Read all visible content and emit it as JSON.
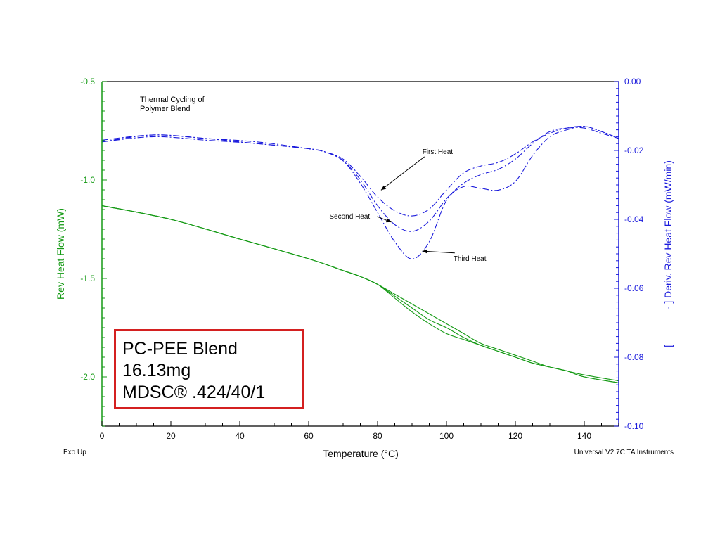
{
  "chart_data": {
    "type": "line",
    "title": "Thermal Cycling of\nPolymer Blend",
    "xlabel": "Temperature (°C)",
    "ylabel_left": "Rev Heat Flow (mW)",
    "ylabel_right": "[ ——— · ] Deriv. Rev Heat Flow (mW/min)",
    "xlim": [
      0,
      150
    ],
    "ylim_left": [
      -2.25,
      -0.5
    ],
    "ylim_right": [
      -0.1,
      0.0
    ],
    "x_ticks": [
      0,
      20,
      40,
      60,
      80,
      100,
      120,
      140
    ],
    "y_ticks_left": [
      -0.5,
      -1.0,
      -1.5,
      -2.0
    ],
    "y_ticks_left_labels": [
      "-0.5",
      "-1.0",
      "-1.5",
      "-2.0"
    ],
    "y_ticks_right": [
      0.0,
      -0.02,
      -0.04,
      -0.06,
      -0.08,
      -0.1
    ],
    "y_ticks_right_labels": [
      "0.00",
      "-0.02",
      "-0.04",
      "-0.06",
      "-0.08",
      "-0.10"
    ],
    "grid": false,
    "colors": {
      "left_axis": "#159a15",
      "right_axis": "#1a1adc",
      "rev_curve": "#159a15",
      "deriv_curve": "#1a1adc"
    },
    "footer_left": "Exo Up",
    "footer_right": "Universal V2.7C TA Instruments",
    "rev_heat_flow_series": [
      {
        "name": "First Heat",
        "axis": "left",
        "x": [
          0,
          20,
          40,
          60,
          70,
          75,
          80,
          85,
          90,
          95,
          100,
          105,
          110,
          115,
          120,
          125,
          130,
          135,
          140,
          150
        ],
        "y": [
          -1.13,
          -1.2,
          -1.3,
          -1.4,
          -1.46,
          -1.49,
          -1.53,
          -1.58,
          -1.63,
          -1.68,
          -1.73,
          -1.78,
          -1.83,
          -1.86,
          -1.89,
          -1.92,
          -1.95,
          -1.97,
          -1.99,
          -2.02
        ]
      },
      {
        "name": "Second Heat",
        "axis": "left",
        "x": [
          0,
          20,
          40,
          60,
          70,
          75,
          80,
          85,
          90,
          95,
          100,
          105,
          110,
          115,
          120,
          125,
          130,
          135,
          140,
          150
        ],
        "y": [
          -1.13,
          -1.2,
          -1.3,
          -1.4,
          -1.46,
          -1.49,
          -1.53,
          -1.59,
          -1.65,
          -1.71,
          -1.75,
          -1.8,
          -1.84,
          -1.87,
          -1.9,
          -1.93,
          -1.95,
          -1.97,
          -2.0,
          -2.03
        ]
      },
      {
        "name": "Third Heat",
        "axis": "left",
        "x": [
          0,
          20,
          40,
          60,
          70,
          75,
          80,
          85,
          90,
          95,
          100,
          105,
          110,
          115,
          120,
          125,
          130,
          135,
          140,
          150
        ],
        "y": [
          -1.13,
          -1.2,
          -1.3,
          -1.4,
          -1.46,
          -1.49,
          -1.53,
          -1.6,
          -1.67,
          -1.73,
          -1.78,
          -1.81,
          -1.84,
          -1.87,
          -1.9,
          -1.93,
          -1.95,
          -1.97,
          -2.0,
          -2.03
        ]
      }
    ],
    "deriv_series": [
      {
        "name": "First Heat",
        "axis": "right",
        "x": [
          0,
          15,
          30,
          45,
          60,
          65,
          70,
          75,
          80,
          85,
          90,
          95,
          100,
          105,
          110,
          115,
          120,
          125,
          130,
          135,
          140,
          145,
          150
        ],
        "y": [
          -0.017,
          -0.0155,
          -0.0165,
          -0.0175,
          -0.0195,
          -0.0205,
          -0.0225,
          -0.0275,
          -0.0335,
          -0.0375,
          -0.039,
          -0.037,
          -0.0315,
          -0.0265,
          -0.0245,
          -0.0235,
          -0.021,
          -0.0175,
          -0.015,
          -0.0135,
          -0.013,
          -0.0145,
          -0.0165
        ]
      },
      {
        "name": "Second Heat",
        "axis": "right",
        "x": [
          0,
          15,
          30,
          45,
          60,
          65,
          70,
          75,
          80,
          85,
          90,
          95,
          100,
          105,
          110,
          115,
          120,
          125,
          130,
          135,
          140,
          145,
          150
        ],
        "y": [
          -0.0175,
          -0.016,
          -0.017,
          -0.018,
          -0.0195,
          -0.0205,
          -0.023,
          -0.0285,
          -0.036,
          -0.0415,
          -0.0435,
          -0.0405,
          -0.034,
          -0.0295,
          -0.027,
          -0.0255,
          -0.0225,
          -0.018,
          -0.0145,
          -0.0135,
          -0.0135,
          -0.015,
          -0.0165
        ]
      },
      {
        "name": "Third Heat",
        "axis": "right",
        "x": [
          0,
          15,
          30,
          45,
          60,
          65,
          70,
          75,
          80,
          85,
          90,
          95,
          100,
          105,
          110,
          115,
          120,
          125,
          130,
          135,
          140,
          145,
          150
        ],
        "y": [
          -0.0175,
          -0.0155,
          -0.0165,
          -0.018,
          -0.0195,
          -0.0205,
          -0.023,
          -0.0295,
          -0.038,
          -0.0465,
          -0.0515,
          -0.0465,
          -0.0345,
          -0.0305,
          -0.031,
          -0.0315,
          -0.029,
          -0.0215,
          -0.016,
          -0.014,
          -0.013,
          -0.0145,
          -0.0165
        ]
      }
    ],
    "annotations": [
      {
        "text": "First Heat",
        "x": 93,
        "y": -0.021,
        "target_x": 81,
        "target_y": -0.0315,
        "axis": "right"
      },
      {
        "text": "Second Heat",
        "x": 66,
        "y": -0.0398,
        "target_x": 84,
        "target_y": -0.0408,
        "axis": "right"
      },
      {
        "text": "Third Heat",
        "x": 102,
        "y": -0.052,
        "target_x": 93,
        "target_y": -0.0492,
        "axis": "right"
      }
    ]
  },
  "note_box": {
    "line1": "PC-PEE Blend",
    "line2": "16.13mg",
    "line3": "MDSC® .424/40/1"
  }
}
